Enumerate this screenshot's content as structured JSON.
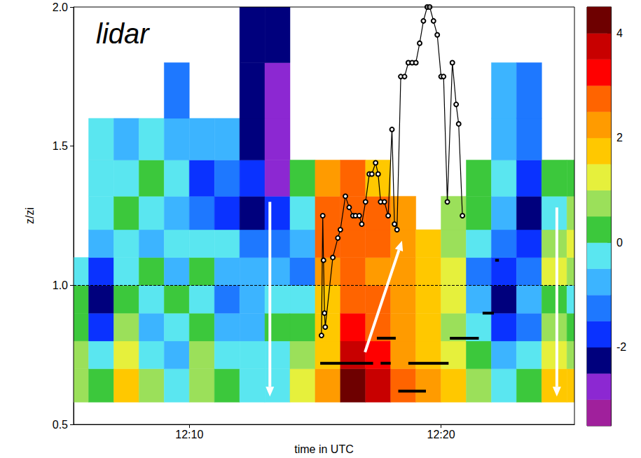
{
  "chart_data": {
    "type": "heatmap",
    "annotation": "lidar",
    "xlabel": "time in UTC",
    "ylabel": "z/zi",
    "xlim": [
      5.4,
      25.3
    ],
    "xticks": [
      {
        "value": 10,
        "label": "12:10"
      },
      {
        "value": 20,
        "label": "12:20"
      }
    ],
    "ylim": [
      0.5,
      2.0
    ],
    "yticks": [
      0.5,
      {
        "value": 1,
        "label": "1.0"
      },
      1.5,
      {
        "value": 2,
        "label": "2.0"
      }
    ],
    "grid": false,
    "x_edges": [
      5.4,
      6,
      7,
      8,
      9,
      10,
      11,
      12,
      13,
      14,
      15,
      16,
      17,
      18,
      19,
      20,
      21,
      22,
      23,
      24,
      25,
      25.3
    ],
    "y_edges": [
      0.58,
      0.7,
      0.8,
      0.9,
      1.0,
      1.1,
      1.2,
      1.32,
      1.45,
      1.6,
      1.8,
      2.0
    ],
    "cells": [
      [
        0.5,
        0.8,
        0.3,
        0,
        -0.5,
        null,
        null,
        null,
        null,
        null,
        null
      ],
      [
        0.3,
        -0.5,
        -2,
        -2.3,
        -1.8,
        -1,
        -0.5,
        -0.3,
        -0.5,
        null,
        null
      ],
      [
        1.5,
        1.2,
        0.8,
        0.2,
        -0.3,
        -0.5,
        0,
        -0.5,
        -0.8,
        null,
        null
      ],
      [
        0.5,
        -0.5,
        -1,
        -0.5,
        0,
        -1,
        -0.5,
        0.3,
        -0.5,
        null,
        null
      ],
      [
        -0.5,
        -1,
        -0.5,
        0,
        -0.8,
        -0.5,
        -1,
        -0.3,
        -0.8,
        -1.2,
        null
      ],
      [
        0.8,
        0.5,
        0,
        -0.5,
        0.3,
        -0.5,
        -1.5,
        -2,
        -1,
        null,
        null
      ],
      [
        0,
        -0.5,
        -1,
        -1.5,
        -1,
        -0.5,
        -1.8,
        -1.5,
        -1,
        null,
        null
      ],
      [
        -0.3,
        -0.5,
        -0.8,
        -1,
        -1,
        -1.5,
        -2.5,
        -2,
        -2.3,
        -2.5,
        -2.5
      ],
      [
        -0.5,
        -0.3,
        0,
        -0.5,
        -1,
        -1.5,
        -2,
        -3,
        -3,
        -3,
        -2.5
      ],
      [
        1,
        0.5,
        0,
        -0.5,
        -1.5,
        -1,
        -0.5,
        0.3,
        null,
        null,
        null
      ],
      [
        2,
        1.8,
        1.5,
        1.8,
        2.2,
        2.5,
        2.5,
        2.3,
        null,
        null,
        null
      ],
      [
        4,
        3.5,
        3,
        2.8,
        2.8,
        2.5,
        2.5,
        2.5,
        null,
        null,
        null
      ],
      [
        3.5,
        3.2,
        2.8,
        2.5,
        2.3,
        2.5,
        2.5,
        1.5,
        null,
        null,
        null
      ],
      [
        2.5,
        2.3,
        2.2,
        2,
        2,
        2,
        2,
        null,
        null,
        null,
        null
      ],
      [
        2,
        1.8,
        1.5,
        1.5,
        1.8,
        1.5,
        null,
        null,
        null,
        null,
        null
      ],
      [
        1.5,
        1,
        0.8,
        1,
        1.2,
        0.8,
        0.5,
        null,
        null,
        null,
        null
      ],
      [
        0.5,
        0,
        -0.5,
        -1,
        -1.5,
        -0.5,
        0,
        0.3,
        null,
        null,
        null
      ],
      [
        -0.5,
        -1,
        -2,
        -2.5,
        -2,
        -1.5,
        -1,
        -0.5,
        -0.8,
        -1,
        null
      ],
      [
        0,
        -0.5,
        -1.5,
        -1,
        -1.5,
        -2,
        -2.3,
        -2,
        -1.5,
        -1.5,
        null
      ],
      [
        1.5,
        1,
        0.5,
        0,
        1,
        0.5,
        -0.3,
        0,
        null,
        null,
        null
      ],
      [
        1.5,
        0.5,
        0,
        -0.5,
        0.5,
        1,
        0.5,
        0,
        null,
        null,
        null
      ]
    ],
    "colorbar": {
      "range": [
        -3.5,
        4.5
      ],
      "ticks": [
        -2,
        0,
        2,
        4
      ],
      "colors": [
        "#a0209c",
        "#8c28d2",
        "#00007d",
        "#0a32ff",
        "#1e78ff",
        "#3cb4ff",
        "#5ae6f0",
        "#3cc83c",
        "#9be05a",
        "#e6f03c",
        "#ffc800",
        "#ff9b00",
        "#ff6400",
        "#ff0000",
        "#c80000",
        "#6e0000"
      ]
    },
    "profile": {
      "x": [
        15.25,
        15.3,
        15.33,
        15.37,
        15.4,
        15.7,
        15.9,
        16.0,
        16.2,
        16.35,
        16.5,
        16.6,
        16.75,
        16.85,
        17.0,
        17.15,
        17.25,
        17.4,
        17.5,
        17.6,
        17.75,
        17.9,
        18.05,
        18.15,
        18.25,
        18.4,
        18.55,
        18.7,
        18.85,
        19.0,
        19.15,
        19.3,
        19.45,
        19.55,
        19.7,
        19.85,
        20.0,
        20.1,
        20.25,
        20.45,
        20.6,
        20.7,
        20.85
      ],
      "values": [
        0.82,
        1.25,
        1.09,
        0.9,
        0.85,
        1.1,
        1.17,
        1.2,
        1.32,
        1.28,
        1.25,
        1.25,
        1.25,
        1.22,
        1.3,
        1.4,
        1.4,
        1.44,
        1.4,
        1.3,
        1.3,
        1.25,
        1.56,
        1.22,
        1.2,
        1.75,
        1.75,
        1.8,
        1.8,
        1.8,
        1.87,
        1.95,
        2.0,
        2.0,
        1.95,
        1.9,
        1.75,
        1.75,
        1.3,
        1.8,
        1.65,
        1.58,
        1.25
      ],
      "color": "#000000",
      "marker": "circle",
      "line_style": "solid"
    },
    "segments": [
      {
        "x": [
          15.2,
          17.3
        ],
        "y": 0.72
      },
      {
        "x": [
          17.45,
          18.2
        ],
        "y": 0.81
      },
      {
        "x": [
          17.6,
          18.0
        ],
        "y": 0.72
      },
      {
        "x": [
          18.3,
          19.4
        ],
        "y": 0.62
      },
      {
        "x": [
          18.7,
          20.3
        ],
        "y": 0.72
      },
      {
        "x": [
          20.35,
          21.5
        ],
        "y": 0.81
      },
      {
        "x": [
          21.65,
          22.1
        ],
        "y": 0.9
      },
      {
        "x": [
          22.15,
          22.3
        ],
        "y": 1.09
      }
    ],
    "hline": 1
  }
}
